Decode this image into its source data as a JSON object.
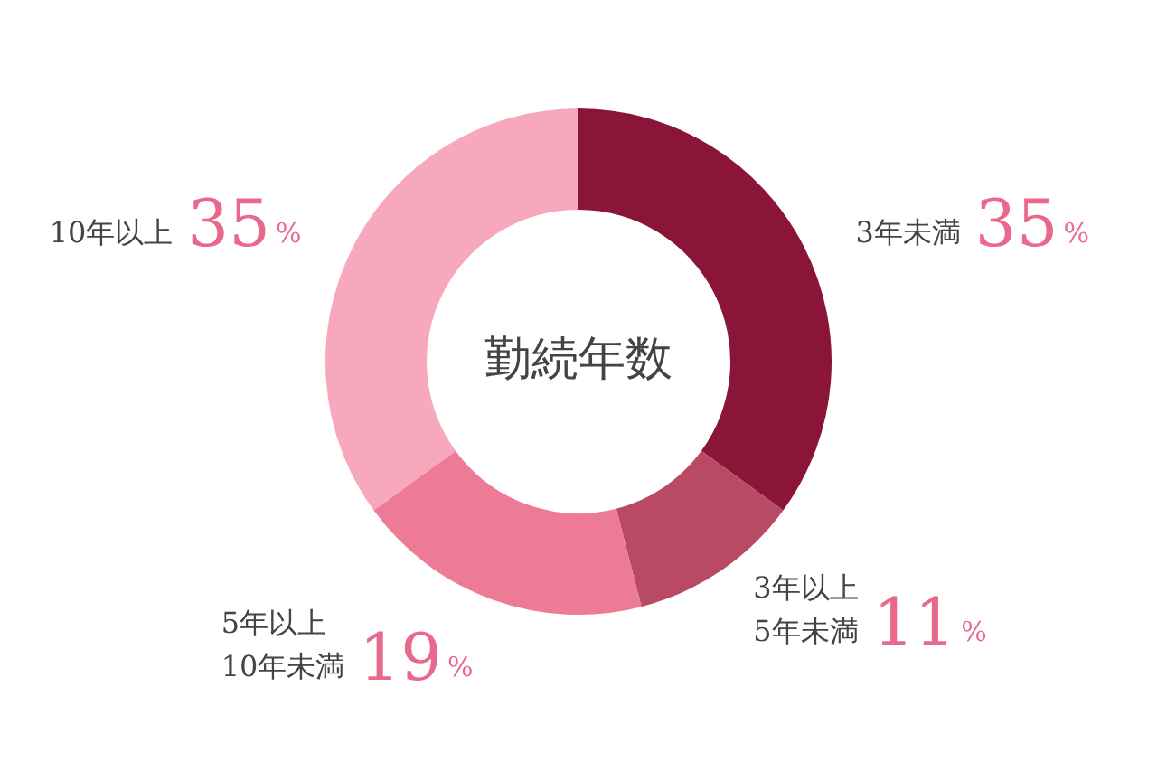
{
  "chart_data": {
    "type": "donut",
    "title": "勤続年数",
    "categories": [
      "3年未満",
      "3年以上\n5年未満",
      "5年以上\n10年未満",
      "10年以上"
    ],
    "values": [
      35,
      11,
      19,
      35
    ],
    "value_labels": [
      "35%",
      "11%",
      "19%",
      "35%"
    ],
    "colors": [
      "#8a1538",
      "#b94a64",
      "#ee7b95",
      "#f7a8bd"
    ],
    "legend": false
  }
}
